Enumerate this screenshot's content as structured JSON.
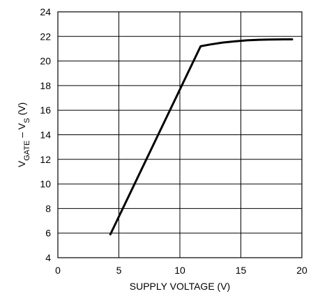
{
  "chart_data": {
    "type": "line",
    "title": "",
    "xlabel": "SUPPLY VOLTAGE (V)",
    "ylabel": {
      "v1": "V",
      "sub1": "GATE",
      "sep": " – V",
      "sub2": "S",
      "unit": " (V)"
    },
    "xlim": [
      0,
      20
    ],
    "ylim": [
      4,
      24
    ],
    "xticks": [
      0,
      5,
      10,
      15,
      20
    ],
    "yticks": [
      4,
      6,
      8,
      10,
      12,
      14,
      16,
      18,
      20,
      22,
      24
    ],
    "grid": true,
    "series": [
      {
        "x": [
          4.3,
          11.7,
          12.5,
          13.5,
          14.5,
          15.5,
          16.5,
          17.5,
          18.5,
          19.2
        ],
        "y": [
          5.9,
          21.2,
          21.35,
          21.5,
          21.6,
          21.68,
          21.73,
          21.75,
          21.76,
          21.76
        ]
      }
    ]
  }
}
